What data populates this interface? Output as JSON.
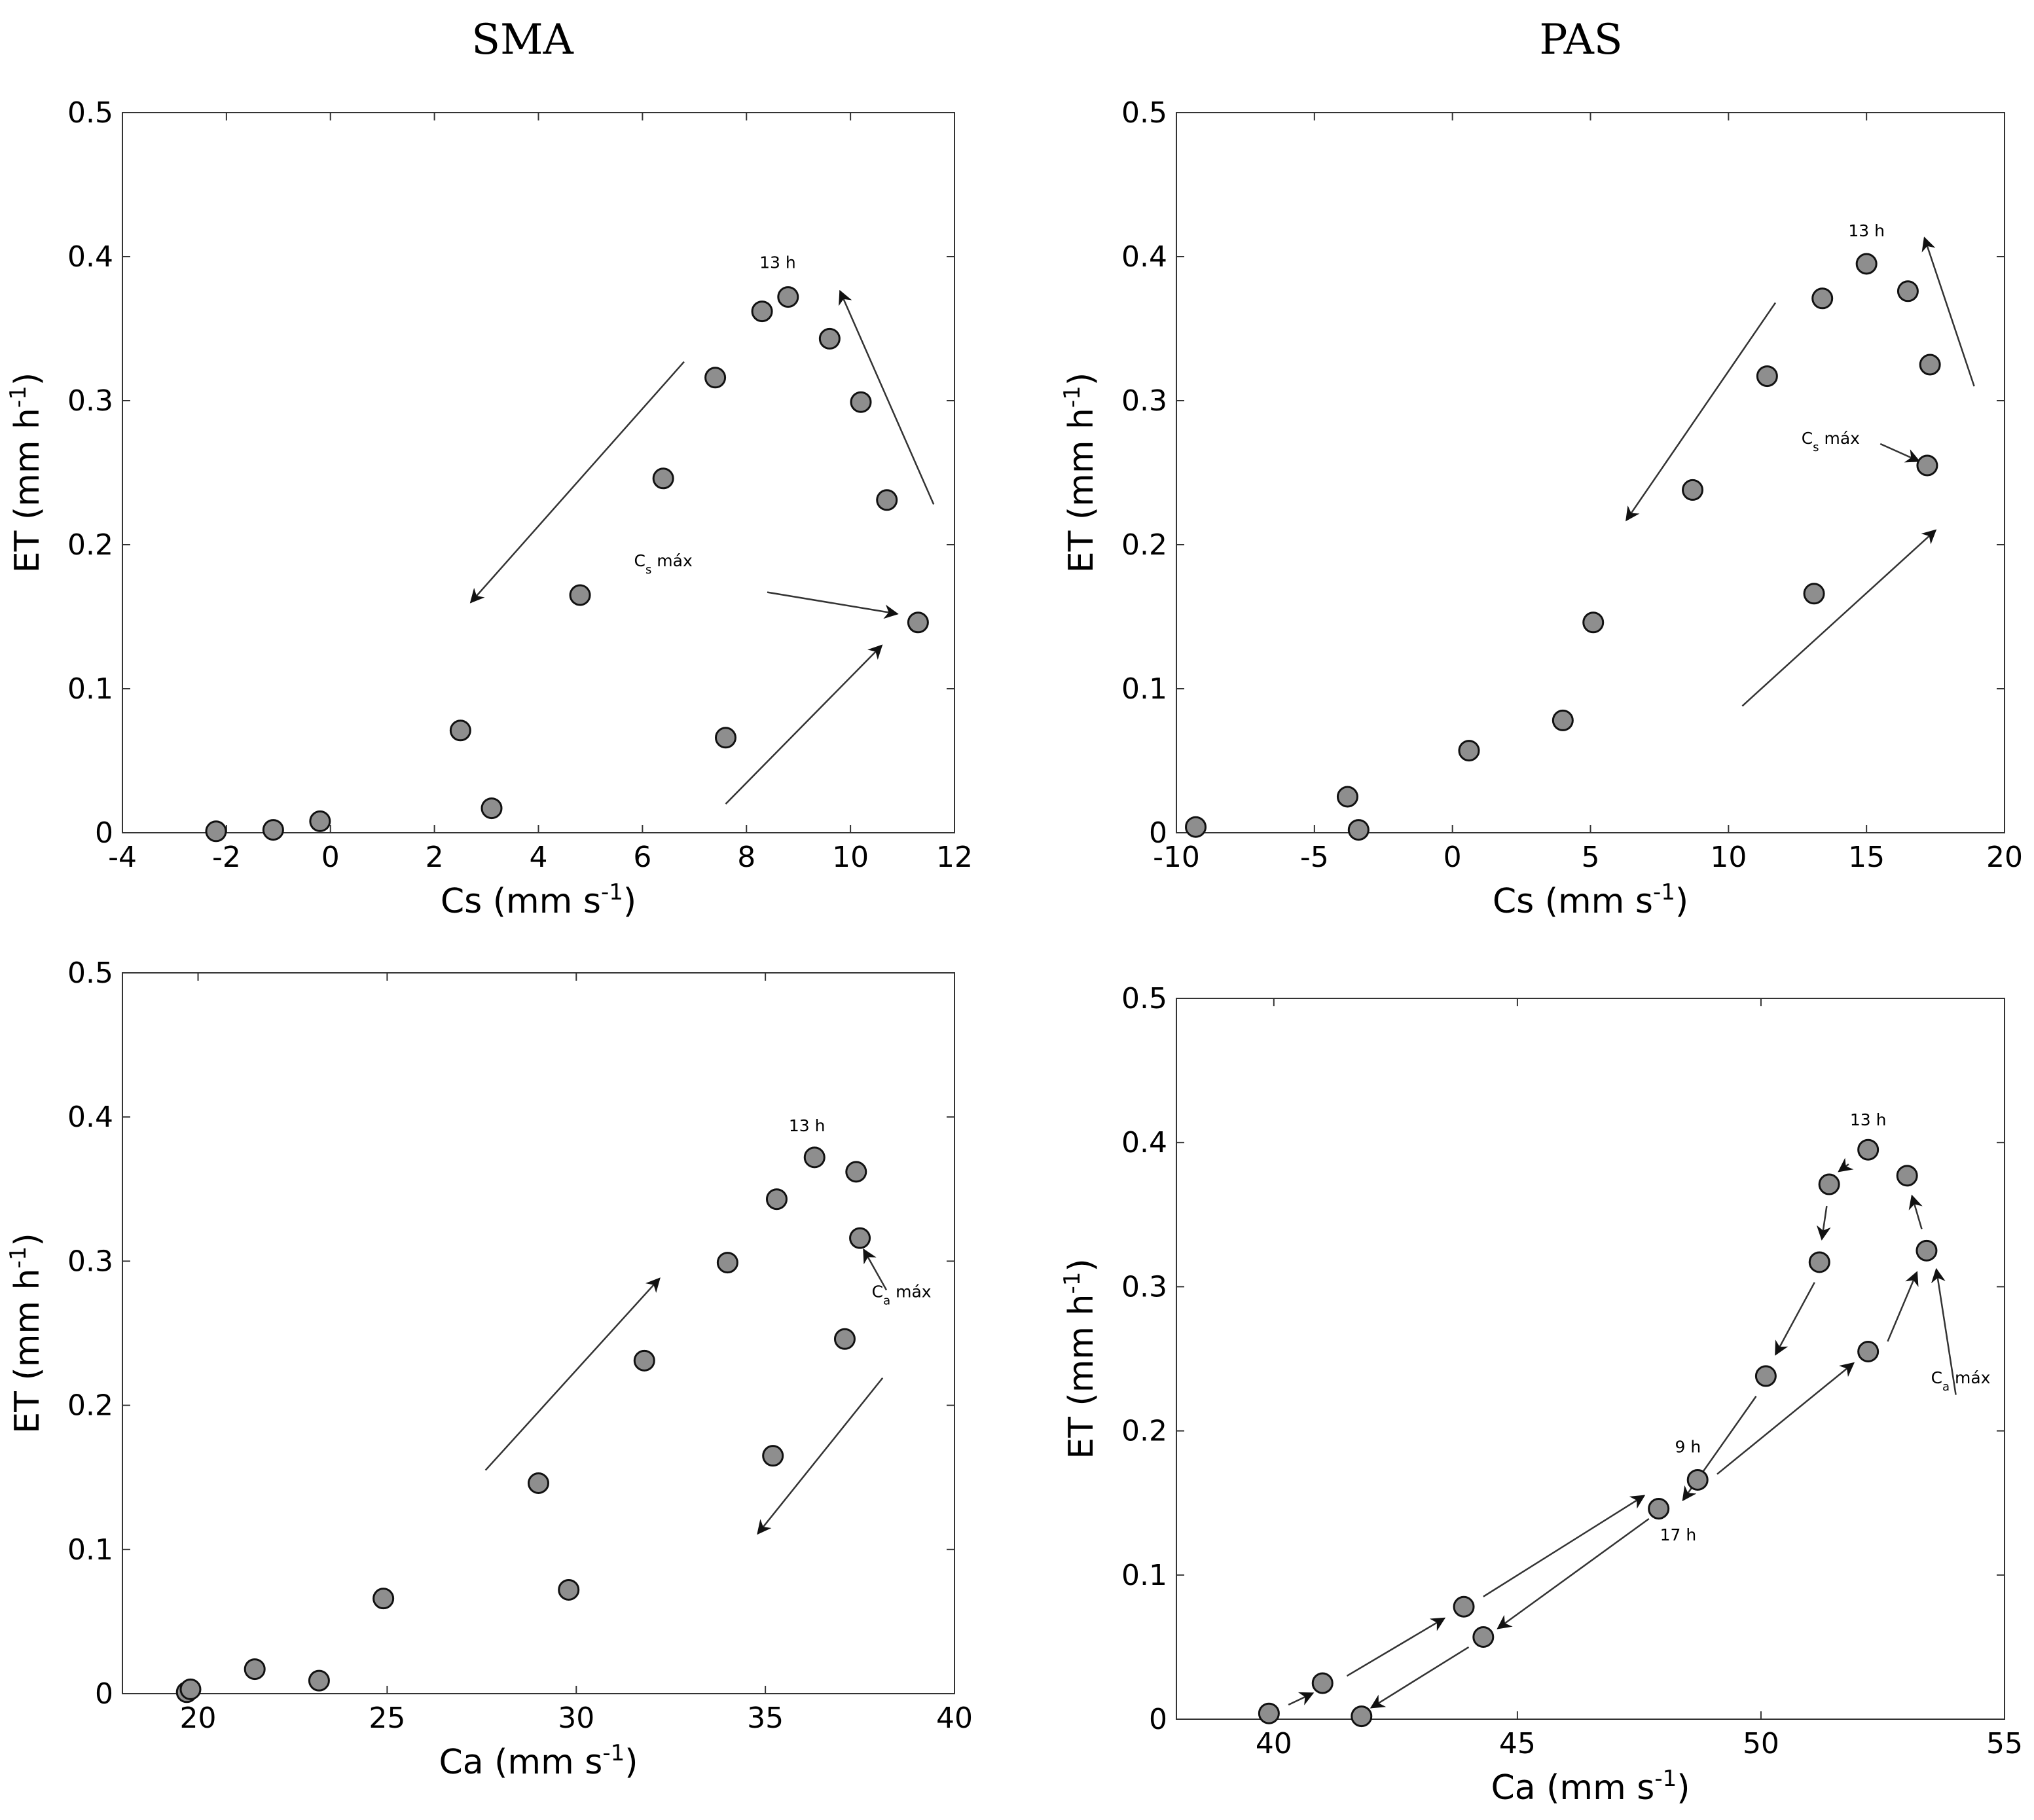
{
  "column_titles": [
    "SMA",
    "PAS"
  ],
  "chart_data": [
    {
      "type": "scatter",
      "title": "SMA",
      "xlabel": "Cs (mm s⁻¹)",
      "ylabel": "ET (mm h⁻¹)",
      "xlim": [
        -4,
        12
      ],
      "ylim": [
        0,
        0.5
      ],
      "xticks": [
        -4,
        -2,
        0,
        2,
        4,
        6,
        8,
        10,
        12
      ],
      "xtick_labels": [
        "-4",
        "-2",
        "0",
        "2",
        "4",
        "6",
        "8",
        "10",
        "12"
      ],
      "yticks": [
        0,
        0.1,
        0.2,
        0.3,
        0.4,
        0.5
      ],
      "ytick_labels": [
        "0",
        "0.1",
        "0.2",
        "0.3",
        "0.4",
        "0.5"
      ],
      "points": [
        {
          "x": -2.2,
          "y": 0.001
        },
        {
          "x": -1.1,
          "y": 0.002
        },
        {
          "x": -0.2,
          "y": 0.008
        },
        {
          "x": 2.5,
          "y": 0.071
        },
        {
          "x": 3.1,
          "y": 0.017
        },
        {
          "x": 4.8,
          "y": 0.165
        },
        {
          "x": 6.4,
          "y": 0.246
        },
        {
          "x": 7.4,
          "y": 0.316
        },
        {
          "x": 7.6,
          "y": 0.066
        },
        {
          "x": 8.3,
          "y": 0.362
        },
        {
          "x": 8.8,
          "y": 0.372
        },
        {
          "x": 9.6,
          "y": 0.343
        },
        {
          "x": 10.2,
          "y": 0.299
        },
        {
          "x": 10.7,
          "y": 0.231
        },
        {
          "x": 11.3,
          "y": 0.146
        }
      ],
      "annotations": [
        {
          "text": "13 h",
          "x": 8.6,
          "y": 0.392
        },
        {
          "text": "Cs máx",
          "x": 6.4,
          "y": 0.185,
          "sub": "s"
        }
      ],
      "arrows": [
        {
          "from": [
            7.6,
            0.02
          ],
          "to": [
            10.6,
            0.13
          ]
        },
        {
          "from": [
            11.6,
            0.228
          ],
          "to": [
            9.8,
            0.376
          ]
        },
        {
          "from": [
            6.8,
            0.327
          ],
          "to": [
            2.7,
            0.16
          ]
        },
        {
          "from": [
            8.4,
            0.167
          ],
          "to": [
            10.9,
            0.152
          ]
        }
      ]
    },
    {
      "type": "scatter",
      "title": "PAS",
      "xlabel": "Cs (mm s⁻¹)",
      "ylabel": "ET (mm h⁻¹)",
      "xlim": [
        -10,
        20
      ],
      "ylim": [
        0,
        0.5
      ],
      "xticks": [
        -10,
        -5,
        0,
        5,
        10,
        15,
        20
      ],
      "xtick_labels": [
        "-10",
        "-5",
        "0",
        "5",
        "10",
        "15",
        "20"
      ],
      "yticks": [
        0,
        0.1,
        0.2,
        0.3,
        0.4,
        0.5
      ],
      "ytick_labels": [
        "0",
        "0.1",
        "0.2",
        "0.3",
        "0.4",
        "0.5"
      ],
      "points": [
        {
          "x": -9.3,
          "y": 0.004
        },
        {
          "x": -3.8,
          "y": 0.025
        },
        {
          "x": -3.4,
          "y": 0.002
        },
        {
          "x": 0.6,
          "y": 0.057
        },
        {
          "x": 4.0,
          "y": 0.078
        },
        {
          "x": 5.1,
          "y": 0.146
        },
        {
          "x": 8.7,
          "y": 0.238
        },
        {
          "x": 11.4,
          "y": 0.317
        },
        {
          "x": 13.1,
          "y": 0.166
        },
        {
          "x": 13.4,
          "y": 0.371
        },
        {
          "x": 15.0,
          "y": 0.395
        },
        {
          "x": 16.5,
          "y": 0.376
        },
        {
          "x": 17.2,
          "y": 0.255
        },
        {
          "x": 17.3,
          "y": 0.325
        }
      ],
      "annotations": [
        {
          "text": "13 h",
          "x": 15.0,
          "y": 0.414
        },
        {
          "text": "Cs máx",
          "x": 13.7,
          "y": 0.27,
          "sub": "s"
        }
      ],
      "arrows": [
        {
          "from": [
            10.5,
            0.088
          ],
          "to": [
            17.5,
            0.21
          ]
        },
        {
          "from": [
            18.9,
            0.31
          ],
          "to": [
            17.1,
            0.413
          ]
        },
        {
          "from": [
            11.7,
            0.368
          ],
          "to": [
            6.3,
            0.217
          ]
        },
        {
          "from": [
            15.5,
            0.27
          ],
          "to": [
            16.9,
            0.258
          ]
        }
      ]
    },
    {
      "type": "scatter",
      "title": "SMA",
      "xlabel": "Ca (mm s⁻¹)",
      "ylabel": "ET (mm h⁻¹)",
      "xlim": [
        18,
        40
      ],
      "ylim": [
        0,
        0.5
      ],
      "xticks": [
        20,
        25,
        30,
        35,
        40
      ],
      "xtick_labels": [
        "20",
        "25",
        "30",
        "35",
        "40"
      ],
      "yticks": [
        0,
        0.1,
        0.2,
        0.3,
        0.4,
        0.5
      ],
      "ytick_labels": [
        "0",
        "0.1",
        "0.2",
        "0.3",
        "0.4",
        "0.5"
      ],
      "points": [
        {
          "x": 19.7,
          "y": 0.001
        },
        {
          "x": 19.8,
          "y": 0.003
        },
        {
          "x": 21.5,
          "y": 0.017
        },
        {
          "x": 23.2,
          "y": 0.009
        },
        {
          "x": 24.9,
          "y": 0.066
        },
        {
          "x": 29.0,
          "y": 0.146
        },
        {
          "x": 29.8,
          "y": 0.072
        },
        {
          "x": 31.8,
          "y": 0.231
        },
        {
          "x": 34.0,
          "y": 0.299
        },
        {
          "x": 35.2,
          "y": 0.165
        },
        {
          "x": 35.3,
          "y": 0.343
        },
        {
          "x": 36.3,
          "y": 0.372
        },
        {
          "x": 37.1,
          "y": 0.246
        },
        {
          "x": 37.4,
          "y": 0.362
        },
        {
          "x": 37.5,
          "y": 0.316
        }
      ],
      "annotations": [
        {
          "text": "13 h",
          "x": 36.1,
          "y": 0.39
        },
        {
          "text": "Ca máx",
          "x": 38.6,
          "y": 0.275,
          "sub": "a"
        }
      ],
      "arrows": [
        {
          "from": [
            27.6,
            0.155
          ],
          "to": [
            32.2,
            0.288
          ]
        },
        {
          "from": [
            38.1,
            0.219
          ],
          "to": [
            34.8,
            0.111
          ]
        },
        {
          "from": [
            38.2,
            0.28
          ],
          "to": [
            37.6,
            0.308
          ]
        }
      ]
    },
    {
      "type": "scatter",
      "title": "PAS",
      "xlabel": "Ca (mm s⁻¹)",
      "ylabel": "ET (mm h⁻¹)",
      "xlim": [
        38,
        55
      ],
      "ylim": [
        0,
        0.5
      ],
      "xticks": [
        40,
        45,
        50,
        55
      ],
      "xtick_labels": [
        "40",
        "45",
        "50",
        "55"
      ],
      "yticks": [
        0,
        0.1,
        0.2,
        0.3,
        0.4,
        0.5
      ],
      "ytick_labels": [
        "0",
        "0.1",
        "0.2",
        "0.3",
        "0.4",
        "0.5"
      ],
      "points": [
        {
          "x": 39.9,
          "y": 0.004
        },
        {
          "x": 41.0,
          "y": 0.025
        },
        {
          "x": 41.8,
          "y": 0.002
        },
        {
          "x": 43.9,
          "y": 0.078
        },
        {
          "x": 44.3,
          "y": 0.057
        },
        {
          "x": 47.9,
          "y": 0.146
        },
        {
          "x": 48.7,
          "y": 0.166
        },
        {
          "x": 50.1,
          "y": 0.238
        },
        {
          "x": 51.2,
          "y": 0.317
        },
        {
          "x": 51.4,
          "y": 0.371
        },
        {
          "x": 52.2,
          "y": 0.255
        },
        {
          "x": 52.2,
          "y": 0.395
        },
        {
          "x": 53.0,
          "y": 0.377
        },
        {
          "x": 53.4,
          "y": 0.325
        }
      ],
      "annotations": [
        {
          "text": "13 h",
          "x": 52.2,
          "y": 0.412
        },
        {
          "text": "9 h",
          "x": 48.5,
          "y": 0.185
        },
        {
          "text": "17 h",
          "x": 48.3,
          "y": 0.124
        },
        {
          "text": "Ca máx",
          "x": 54.1,
          "y": 0.233,
          "sub": "a"
        }
      ],
      "arrows": [
        {
          "from": [
            40.3,
            0.01
          ],
          "to": [
            40.8,
            0.018
          ]
        },
        {
          "from": [
            41.5,
            0.03
          ],
          "to": [
            43.5,
            0.07
          ]
        },
        {
          "from": [
            44.3,
            0.085
          ],
          "to": [
            47.6,
            0.155
          ]
        },
        {
          "from": [
            49.1,
            0.17
          ],
          "to": [
            51.9,
            0.247
          ]
        },
        {
          "from": [
            52.6,
            0.262
          ],
          "to": [
            53.2,
            0.31
          ]
        },
        {
          "from": [
            53.3,
            0.34
          ],
          "to": [
            53.1,
            0.363
          ]
        },
        {
          "from": [
            51.8,
            0.385
          ],
          "to": [
            51.6,
            0.38
          ]
        },
        {
          "from": [
            51.35,
            0.356
          ],
          "to": [
            51.25,
            0.333
          ]
        },
        {
          "from": [
            51.1,
            0.303
          ],
          "to": [
            50.3,
            0.253
          ]
        },
        {
          "from": [
            49.9,
            0.224
          ],
          "to": [
            48.4,
            0.152
          ]
        },
        {
          "from": [
            47.7,
            0.139
          ],
          "to": [
            44.6,
            0.063
          ]
        },
        {
          "from": [
            44.0,
            0.05
          ],
          "to": [
            42.0,
            0.008
          ]
        },
        {
          "from": [
            54.0,
            0.225
          ],
          "to": [
            53.6,
            0.312
          ]
        }
      ]
    }
  ]
}
